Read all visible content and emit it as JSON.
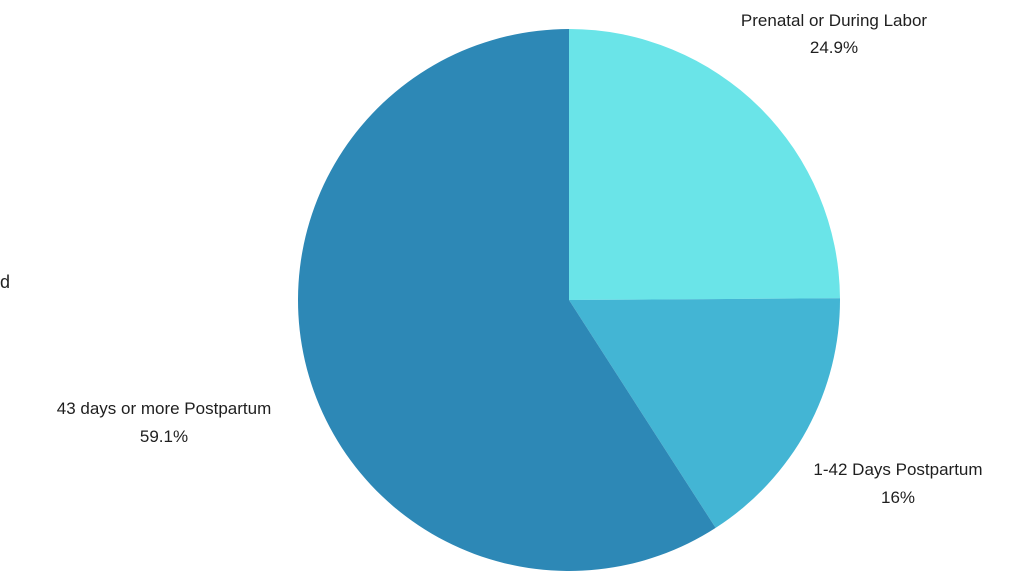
{
  "edge_text": "d",
  "chart_data": {
    "type": "pie",
    "title": "",
    "start_angle_deg": 0,
    "direction": "clockwise",
    "slices": [
      {
        "label": "Prenatal or During Labor",
        "value": 24.9,
        "value_label": "24.9%",
        "color": "#6ae4e8"
      },
      {
        "label": "1-42 Days Postpartum",
        "value": 16,
        "value_label": "16%",
        "color": "#43b5d4"
      },
      {
        "label": "43 days or more Postpartum",
        "value": 59.1,
        "value_label": "59.1%",
        "color": "#2d88b6"
      }
    ]
  }
}
